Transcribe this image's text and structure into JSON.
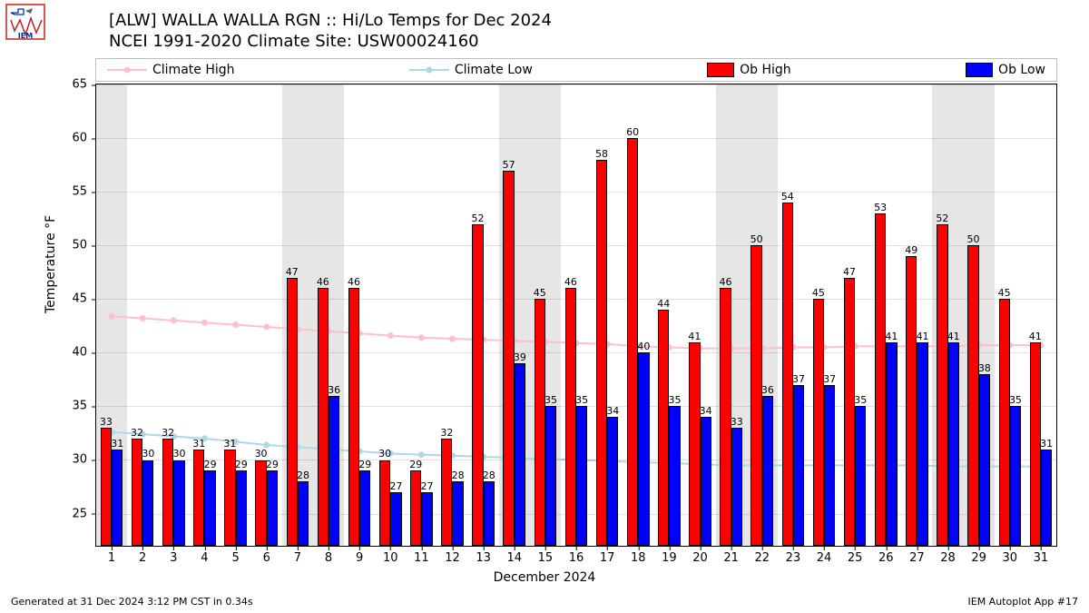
{
  "title_line1": "[ALW] WALLA WALLA RGN :: Hi/Lo Temps for Dec 2024",
  "title_line2": "NCEI 1991-2020 Climate Site: USW00024160",
  "ylabel": "Temperature °F",
  "xlabel": "December 2024",
  "footer_left": "Generated at 31 Dec 2024 3:12 PM CST in 0.34s",
  "footer_right": "IEM Autoplot App #17",
  "legend": {
    "climate_high": "Climate High",
    "climate_low": "Climate Low",
    "ob_high": "Ob High",
    "ob_low": "Ob Low"
  },
  "colors": {
    "climate_high": "#ffc0cb",
    "climate_low": "#add8e6",
    "ob_high": "#ff0000",
    "ob_low": "#0000ff",
    "grid": "#d9d9d9",
    "weekend": "#e6e6e6",
    "bar_edge": "#000000",
    "background": "#ffffff"
  },
  "yaxis": {
    "min": 22,
    "max": 65,
    "ticks": [
      25,
      30,
      35,
      40,
      45,
      50,
      55,
      60,
      65
    ]
  },
  "xaxis": {
    "days": 31
  },
  "weekends": [
    1,
    7,
    8,
    14,
    15,
    21,
    22,
    28,
    29
  ],
  "climate_high": [
    43.4,
    43.2,
    43.0,
    42.8,
    42.6,
    42.4,
    42.2,
    42.0,
    41.8,
    41.6,
    41.4,
    41.3,
    41.2,
    41.1,
    41.0,
    40.9,
    40.8,
    40.6,
    40.5,
    40.4,
    40.4,
    40.4,
    40.5,
    40.5,
    40.6,
    40.6,
    40.6,
    40.6,
    40.7,
    40.7,
    40.7
  ],
  "climate_low": [
    32.6,
    32.4,
    32.2,
    32.0,
    31.7,
    31.4,
    31.2,
    31.0,
    30.8,
    30.6,
    30.5,
    30.4,
    30.3,
    30.2,
    30.1,
    30.0,
    29.9,
    29.8,
    29.7,
    29.6,
    29.5,
    29.5,
    29.5,
    29.5,
    29.5,
    29.5,
    29.5,
    29.4,
    29.4,
    29.4,
    29.4
  ],
  "ob_high": [
    33,
    32,
    32,
    31,
    31,
    30,
    47,
    46,
    46,
    30,
    29,
    32,
    52,
    57,
    45,
    46,
    58,
    60,
    44,
    41,
    46,
    50,
    54,
    45,
    47,
    53,
    49,
    52,
    50,
    45,
    41
  ],
  "ob_low": [
    31,
    30,
    30,
    29,
    29,
    29,
    28,
    36,
    29,
    27,
    27,
    28,
    28,
    39,
    35,
    35,
    34,
    40,
    35,
    34,
    33,
    36,
    37,
    37,
    35,
    41,
    41,
    41,
    38,
    35,
    31
  ],
  "marker_radius": 3.5,
  "line_width": 2,
  "bar_rel_width": 0.36
}
